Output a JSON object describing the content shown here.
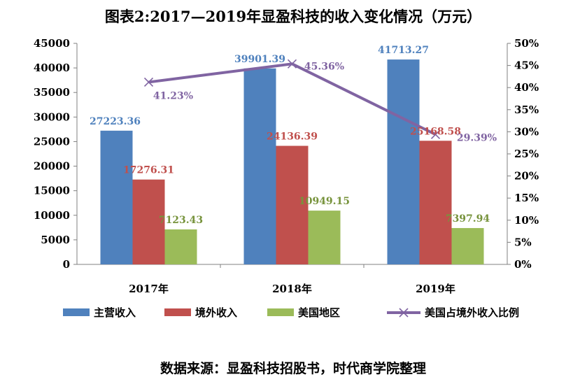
{
  "chart_data": {
    "type": "bar",
    "title": "图表2:2017—2019年显盈科技的收入变化情况（万元）",
    "categories": [
      "2017年",
      "2018年",
      "2019年"
    ],
    "series": [
      {
        "name": "主营收入",
        "type": "bar",
        "axis": "left",
        "color": "#4F81BD",
        "values": [
          27223.36,
          39901.39,
          41713.27
        ],
        "labels": [
          "27223.36",
          "39901.39",
          "41713.27"
        ],
        "label_color": "#4F81BD"
      },
      {
        "name": "境外收入",
        "type": "bar",
        "axis": "left",
        "color": "#C0504D",
        "values": [
          17276.31,
          24136.39,
          25168.58
        ],
        "labels": [
          "17276.31",
          "24136.39",
          "25168.58"
        ],
        "label_color": "#C0504D"
      },
      {
        "name": "美国地区",
        "type": "bar",
        "axis": "left",
        "color": "#9BBB59",
        "values": [
          7123.43,
          10949.15,
          7397.94
        ],
        "labels": [
          "7123.43",
          "10949.15",
          "7397.94"
        ],
        "label_color": "#77933C"
      },
      {
        "name": "美国占境外收入比例",
        "type": "line",
        "axis": "right",
        "color": "#8064A2",
        "values": [
          41.23,
          45.36,
          29.39
        ],
        "labels": [
          "41.23%",
          "45.36%",
          "29.39%"
        ],
        "label_color": "#8064A2"
      }
    ],
    "y_left": {
      "min": 0,
      "max": 45000,
      "step": 5000,
      "ticks": [
        "0",
        "5000",
        "10000",
        "15000",
        "20000",
        "25000",
        "30000",
        "35000",
        "40000",
        "45000"
      ]
    },
    "y_right": {
      "min": 0,
      "max": 50,
      "step": 5,
      "ticks": [
        "0%",
        "5%",
        "10%",
        "15%",
        "20%",
        "25%",
        "30%",
        "35%",
        "40%",
        "45%",
        "50%"
      ]
    },
    "grid": false,
    "legend": "bottom"
  },
  "source_note": "数据来源：显盈科技招股书，时代商学院整理"
}
